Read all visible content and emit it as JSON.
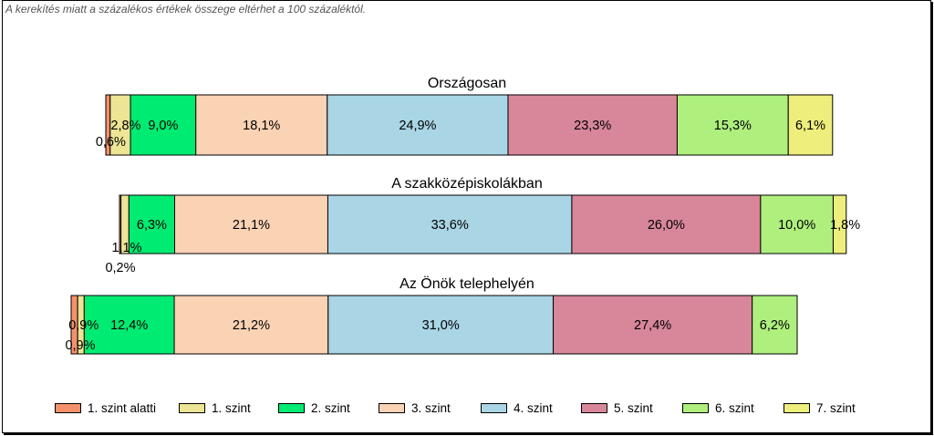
{
  "note": "A kerekítés miatt a  százalékos értékek összege eltérhet a 100 százaléktól.",
  "chart_data": {
    "type": "bar",
    "orientation": "horizontal-stacked-100",
    "categories": [
      "Országosan",
      "A szakközépiskolákban",
      "Az Önök telephelyén"
    ],
    "legend": [
      {
        "name": "1. szint alatti",
        "color": "#F4916B"
      },
      {
        "name": "1. szint",
        "color": "#EDE496"
      },
      {
        "name": "2. szint",
        "color": "#00EB72"
      },
      {
        "name": "3. szint",
        "color": "#FAD2B4"
      },
      {
        "name": "4. szint",
        "color": "#A9D5E5"
      },
      {
        "name": "5. szint",
        "color": "#D8869A"
      },
      {
        "name": "6. szint",
        "color": "#AEEF7E"
      },
      {
        "name": "7. szint",
        "color": "#EDEE7C"
      }
    ],
    "panels": [
      {
        "title": "Országosan",
        "values": [
          0.6,
          2.8,
          9.0,
          18.1,
          24.9,
          23.3,
          15.3,
          6.1
        ],
        "labels": [
          "0,6%",
          "2,8%",
          "9,0%",
          "18,1%",
          "24,9%",
          "23,3%",
          "15,3%",
          "6,1%"
        ]
      },
      {
        "title": "A szakközépiskolákban",
        "values": [
          0.2,
          1.1,
          6.3,
          21.1,
          33.6,
          26.0,
          10.0,
          1.8
        ],
        "labels": [
          "0,2%",
          "1,1%",
          "6,3%",
          "21,1%",
          "33,6%",
          "26,0%",
          "10,0%",
          "1,8%"
        ]
      },
      {
        "title": "Az Önök telephelyén",
        "values": [
          0.9,
          0.9,
          12.4,
          21.2,
          31.0,
          27.4,
          6.2,
          0.0
        ],
        "labels": [
          "0,9%",
          "0,9%",
          "12,4%",
          "21,2%",
          "31,0%",
          "27,4%",
          "6,2%",
          ""
        ]
      }
    ]
  }
}
